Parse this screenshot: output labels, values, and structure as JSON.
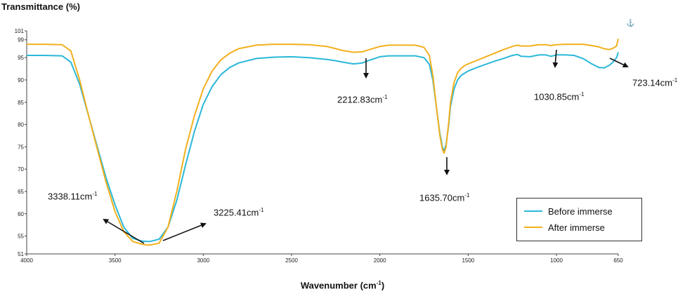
{
  "chart_data": {
    "type": "line",
    "ylabel": "Transmittance (%)",
    "xlabel": "Wavenumber (cm",
    "xlabel_sup": "-1",
    "xlabel_suffix": ")",
    "xlim": [
      4000,
      650
    ],
    "ylim": [
      51,
      101
    ],
    "x_ticks": [
      4000,
      3500,
      3000,
      2500,
      2000,
      1500,
      1000,
      650
    ],
    "y_ticks": [
      51,
      55,
      60,
      65,
      70,
      75,
      80,
      85,
      90,
      95,
      99,
      101
    ],
    "grid": false,
    "legend_position": "bottom-right",
    "series": [
      {
        "name": "Before immerse",
        "color": "#2bb8d8",
        "x": [
          4000,
          3900,
          3800,
          3750,
          3700,
          3650,
          3600,
          3550,
          3500,
          3450,
          3400,
          3350,
          3320,
          3300,
          3250,
          3200,
          3150,
          3100,
          3050,
          3000,
          2950,
          2900,
          2850,
          2800,
          2700,
          2600,
          2500,
          2400,
          2300,
          2250,
          2212,
          2150,
          2100,
          2060,
          2000,
          1950,
          1900,
          1800,
          1750,
          1720,
          1700,
          1680,
          1660,
          1645,
          1636,
          1625,
          1610,
          1600,
          1580,
          1560,
          1540,
          1520,
          1500,
          1450,
          1400,
          1350,
          1300,
          1250,
          1220,
          1200,
          1150,
          1100,
          1060,
          1031,
          1000,
          950,
          900,
          850,
          800,
          760,
          730,
          700,
          680,
          660,
          650
        ],
        "y": [
          95.5,
          95.5,
          95.4,
          94.0,
          89.0,
          82.0,
          75.0,
          68.0,
          62.0,
          57.0,
          54.5,
          53.9,
          53.8,
          53.8,
          54.3,
          57.0,
          63.0,
          71.0,
          78.5,
          84.5,
          88.5,
          91.2,
          92.8,
          93.8,
          94.8,
          95.1,
          95.2,
          95.0,
          94.6,
          94.3,
          94.0,
          93.6,
          93.8,
          94.4,
          95.2,
          95.4,
          95.4,
          95.4,
          95.0,
          93.5,
          90.0,
          84.0,
          78.0,
          74.8,
          74.2,
          75.5,
          80.0,
          84.0,
          88.0,
          90.0,
          91.0,
          91.5,
          92.0,
          92.8,
          93.5,
          94.2,
          94.8,
          95.5,
          95.7,
          95.3,
          95.2,
          95.6,
          95.6,
          95.3,
          95.6,
          95.6,
          95.5,
          94.8,
          93.6,
          92.8,
          92.7,
          93.3,
          94.0,
          95.0,
          96.2
        ]
      },
      {
        "name": "After immerse",
        "color": "#f2b01e",
        "x": [
          4000,
          3900,
          3800,
          3750,
          3700,
          3650,
          3600,
          3550,
          3500,
          3450,
          3400,
          3350,
          3320,
          3300,
          3250,
          3200,
          3150,
          3100,
          3050,
          3000,
          2950,
          2900,
          2850,
          2800,
          2700,
          2600,
          2500,
          2400,
          2300,
          2250,
          2212,
          2150,
          2100,
          2060,
          2000,
          1950,
          1900,
          1800,
          1750,
          1720,
          1700,
          1680,
          1660,
          1645,
          1636,
          1625,
          1610,
          1600,
          1580,
          1560,
          1540,
          1520,
          1500,
          1450,
          1400,
          1350,
          1300,
          1250,
          1220,
          1200,
          1150,
          1100,
          1060,
          1031,
          1000,
          950,
          900,
          850,
          800,
          760,
          730,
          700,
          680,
          660,
          650
        ],
        "y": [
          98.0,
          98.0,
          97.9,
          96.5,
          90.0,
          82.0,
          74.5,
          67.0,
          60.5,
          56.0,
          53.8,
          53.2,
          53.0,
          53.0,
          53.4,
          57.0,
          65.0,
          74.5,
          82.0,
          88.0,
          92.0,
          94.5,
          96.0,
          97.0,
          97.8,
          98.0,
          98.0,
          97.9,
          97.5,
          97.0,
          96.6,
          96.2,
          96.3,
          96.8,
          97.5,
          97.8,
          97.8,
          97.8,
          97.3,
          95.5,
          91.0,
          84.0,
          77.5,
          74.3,
          73.6,
          75.0,
          80.5,
          85.0,
          89.5,
          91.6,
          92.6,
          93.2,
          93.6,
          94.4,
          95.2,
          96.0,
          96.8,
          97.5,
          97.8,
          97.6,
          97.6,
          97.9,
          97.9,
          97.7,
          97.9,
          98.0,
          98.0,
          98.0,
          97.7,
          97.4,
          97.0,
          96.8,
          97.1,
          97.6,
          99.2
        ]
      }
    ],
    "annotations": [
      {
        "text": "3338.11cm",
        "sup": "-1"
      },
      {
        "text": "3225.41cm",
        "sup": "-1"
      },
      {
        "text": "2212.83cm",
        "sup": "-1"
      },
      {
        "text": "1635.70cm",
        "sup": "-1"
      },
      {
        "text": "1030.85cm",
        "sup": "-1"
      },
      {
        "text": "723.14cm",
        "sup": "-1"
      }
    ],
    "marker_glyph": "⚓"
  }
}
